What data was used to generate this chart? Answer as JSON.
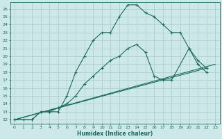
{
  "xlabel": "Humidex (Indice chaleur)",
  "background_color": "#cce8e8",
  "grid_color": "#b0d0d0",
  "line_color": "#1a6b5a",
  "xlim": [
    -0.5,
    23.5
  ],
  "ylim": [
    11.5,
    26.8
  ],
  "xticks": [
    0,
    1,
    2,
    3,
    4,
    5,
    6,
    7,
    8,
    9,
    10,
    11,
    12,
    13,
    14,
    15,
    16,
    17,
    18,
    19,
    20,
    21,
    22,
    23
  ],
  "yticks": [
    12,
    13,
    14,
    15,
    16,
    17,
    18,
    19,
    20,
    21,
    22,
    23,
    24,
    25,
    26
  ],
  "line1_x": [
    0,
    1,
    2,
    3,
    4,
    5,
    6,
    7,
    8,
    9,
    10,
    11,
    12,
    13,
    14,
    15,
    16,
    17,
    18,
    19,
    20,
    21,
    22
  ],
  "line1_y": [
    12,
    12,
    12,
    13,
    13,
    13,
    15,
    18,
    20,
    22,
    23,
    23,
    25,
    26.5,
    26.5,
    25.5,
    25,
    24,
    23,
    23,
    21,
    19,
    18
  ],
  "line2_x": [
    0,
    2,
    3,
    4,
    5,
    6,
    7,
    8,
    9,
    10,
    11,
    12,
    13,
    14,
    15,
    16,
    17,
    18,
    20,
    21,
    22
  ],
  "line2_y": [
    12,
    12,
    13,
    13,
    13.5,
    14,
    15,
    16.5,
    17.5,
    18.5,
    19.5,
    20,
    21,
    21.5,
    20.5,
    17.5,
    17,
    17,
    21,
    19.5,
    18.5
  ],
  "line3_x": [
    0,
    22
  ],
  "line3_y": [
    12,
    18.5
  ],
  "line4_x": [
    0,
    23
  ],
  "line4_y": [
    12,
    19
  ]
}
